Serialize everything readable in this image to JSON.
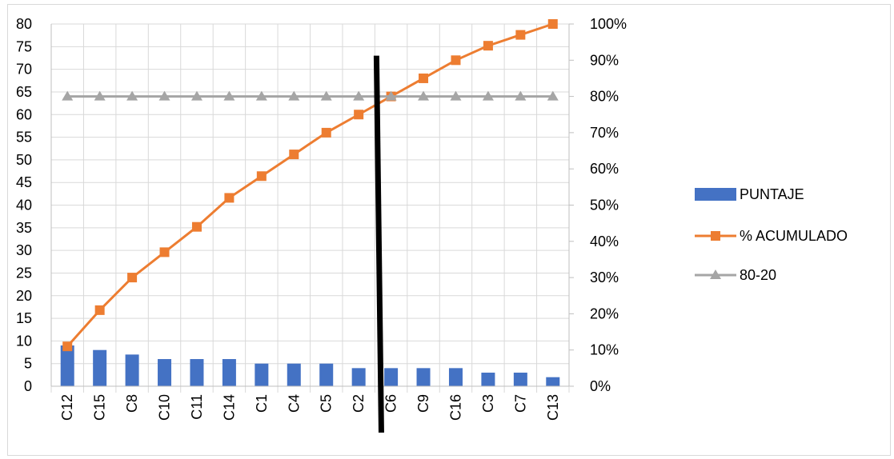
{
  "chart_data": {
    "type": "bar",
    "categories": [
      "C12",
      "C15",
      "C8",
      "C10",
      "C11",
      "C14",
      "C1",
      "C4",
      "C5",
      "C2",
      "C6",
      "C9",
      "C16",
      "C3",
      "C7",
      "C13"
    ],
    "series": [
      {
        "name": "PUNTAJE",
        "kind": "bar",
        "axis": "left",
        "color": "#4472c4",
        "values": [
          9,
          8,
          7,
          6,
          6,
          6,
          5,
          5,
          5,
          4,
          4,
          4,
          4,
          3,
          3,
          2
        ]
      },
      {
        "name": "% ACUMULADO",
        "kind": "line",
        "axis": "right",
        "color": "#ed7d31",
        "marker": "square",
        "values": [
          11,
          21,
          30,
          37,
          44,
          52,
          58,
          64,
          70,
          75,
          80,
          85,
          90,
          94,
          97,
          100
        ]
      },
      {
        "name": "80-20",
        "kind": "line",
        "axis": "right",
        "color": "#a5a5a5",
        "marker": "triangle",
        "values": [
          80,
          80,
          80,
          80,
          80,
          80,
          80,
          80,
          80,
          80,
          80,
          80,
          80,
          80,
          80,
          80
        ]
      }
    ],
    "y_left": {
      "min": 0,
      "max": 80,
      "step": 5,
      "ticks": [
        "0",
        "5",
        "10",
        "15",
        "20",
        "25",
        "30",
        "35",
        "40",
        "45",
        "50",
        "55",
        "60",
        "65",
        "70",
        "75",
        "80"
      ]
    },
    "y_right": {
      "min": 0,
      "max": 100,
      "step": 10,
      "ticks": [
        "0%",
        "10%",
        "20%",
        "30%",
        "40%",
        "50%",
        "60%",
        "70%",
        "80%",
        "90%",
        "100%"
      ]
    },
    "annotation": {
      "type": "vertical-line",
      "color": "#000000",
      "from_category_index": 10.2,
      "to_category_index": 10.05,
      "to_y_left": 73
    },
    "grid": true,
    "legend_position": "right",
    "title": "",
    "xlabel": "",
    "ylabel": ""
  }
}
